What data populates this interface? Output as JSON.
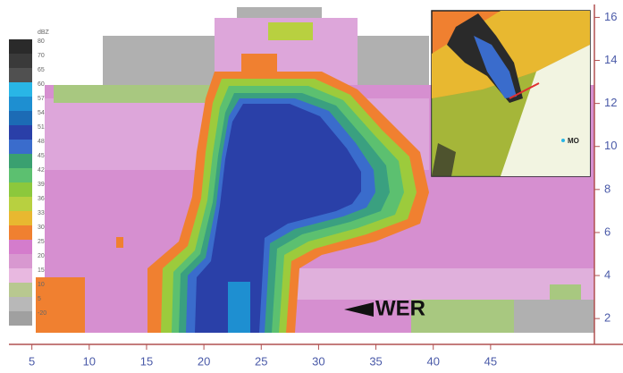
{
  "chart_data": {
    "type": "heatmap",
    "xlim": [
      3,
      56
    ],
    "xticks": [
      5,
      10,
      15,
      20,
      25,
      30,
      35,
      40,
      45
    ],
    "ylim": [
      0.8,
      16.6
    ],
    "yticks": [
      2,
      4,
      6,
      8,
      10,
      12,
      14,
      16
    ],
    "colorbar": {
      "title": "dBZ",
      "levels": [
        80,
        70,
        65,
        60,
        57,
        54,
        51,
        48,
        45,
        42,
        39,
        36,
        33,
        30,
        25,
        20,
        15,
        10,
        5,
        -20
      ],
      "colors": [
        "#2a2a2a",
        "#3a3a3a",
        "#505050",
        "#29b6e6",
        "#1e8fd1",
        "#1c6bb5",
        "#2a3fa8",
        "#3a6ccc",
        "#3aa070",
        "#5cc070",
        "#8cc83c",
        "#b8d040",
        "#e8b830",
        "#f08030",
        "#d47ccc",
        "#d898d0",
        "#e8b8e0",
        "#b8c890",
        "#b8b8b8",
        "#a0a0a0"
      ]
    },
    "annotations": [
      "WER"
    ],
    "inset": {
      "label": "MO"
    }
  }
}
